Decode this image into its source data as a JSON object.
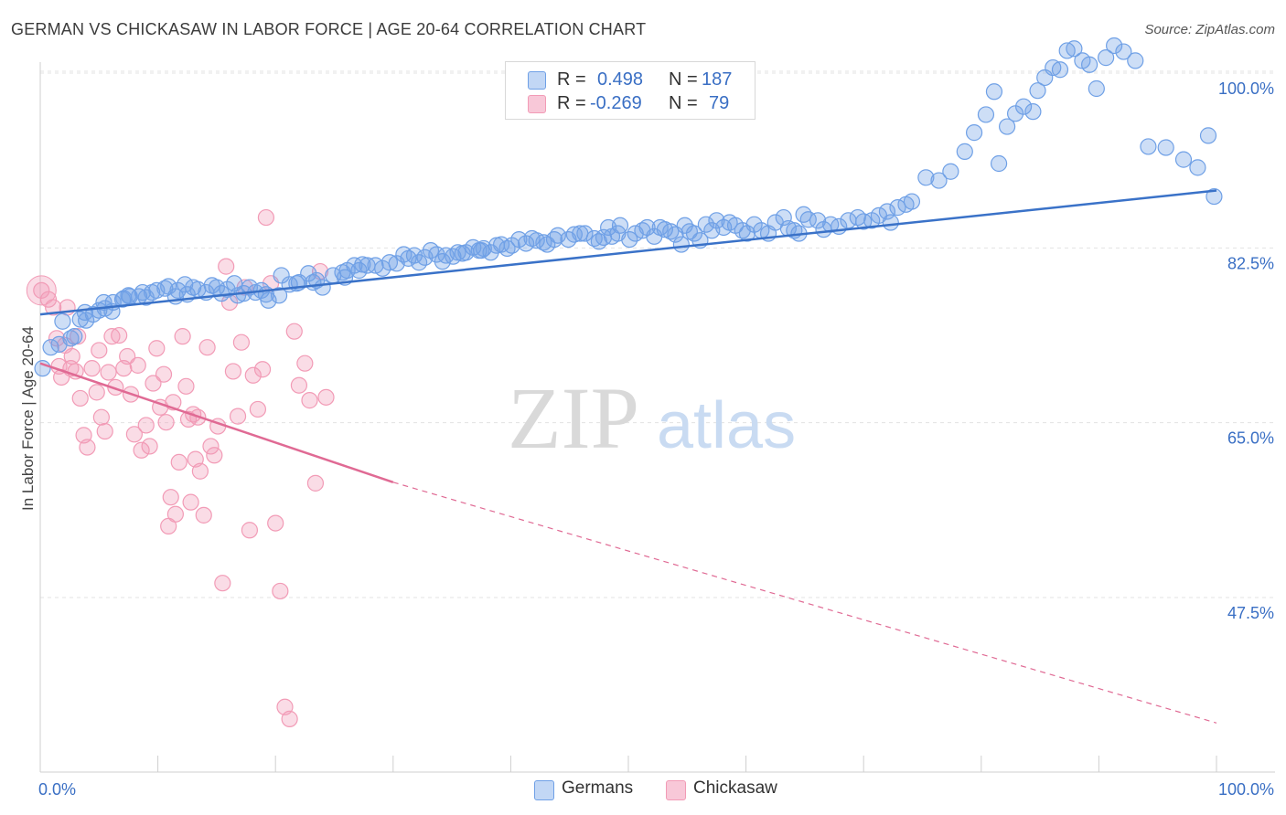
{
  "title": "GERMAN VS CHICKASAW IN LABOR FORCE | AGE 20-64 CORRELATION CHART",
  "source": "Source: ZipAtlas.com",
  "watermark": {
    "zip": "ZIP",
    "atlas": "atlas"
  },
  "legend": {
    "german": {
      "r_label": "R =",
      "r_value": "0.498",
      "n_label": "N =",
      "n_value": "187"
    },
    "chickasaw": {
      "r_label": "R =",
      "r_value": "-0.269",
      "n_label": "N =",
      "n_value": "79"
    }
  },
  "colors": {
    "german": "#6fa0e6",
    "german_line": "#3a72c8",
    "chickasaw": "#f29bb6",
    "chickasaw_line": "#e06a94",
    "tick_label": "#3a6fc4"
  },
  "chart_data": {
    "type": "scatter",
    "ylabel": "In Labor Force | Age 20-64",
    "xlim": [
      0,
      100
    ],
    "ylim": [
      35,
      100
    ],
    "x_tick_labels": [
      "0.0%",
      "100.0%"
    ],
    "y_ticks": [
      {
        "value": 100.0,
        "label": "100.0%"
      },
      {
        "value": 82.5,
        "label": "82.5%"
      },
      {
        "value": 65.0,
        "label": "65.0%"
      },
      {
        "value": 47.5,
        "label": "47.5%"
      }
    ],
    "series": [
      {
        "name": "Germans",
        "trend": {
          "x0": 0,
          "y0": 77.4,
          "x1": 100,
          "y1": 89.8
        },
        "points": [
          [
            0.2,
            72.0
          ],
          [
            0.9,
            74.1
          ],
          [
            1.6,
            74.4
          ],
          [
            1.9,
            76.7
          ],
          [
            2.6,
            75.0
          ],
          [
            2.9,
            75.2
          ],
          [
            3.4,
            76.9
          ],
          [
            3.8,
            77.6
          ],
          [
            3.9,
            76.8
          ],
          [
            4.5,
            77.4
          ],
          [
            5.0,
            77.8
          ],
          [
            5.4,
            78.6
          ],
          [
            5.5,
            78.0
          ],
          [
            6.1,
            77.7
          ],
          [
            6.2,
            78.6
          ],
          [
            7.0,
            78.9
          ],
          [
            7.1,
            79.0
          ],
          [
            7.5,
            79.3
          ],
          [
            7.6,
            79.2
          ],
          [
            8.4,
            79.2
          ],
          [
            8.7,
            79.6
          ],
          [
            9.0,
            79.1
          ],
          [
            9.5,
            79.6
          ],
          [
            9.9,
            79.8
          ],
          [
            10.6,
            80.0
          ],
          [
            10.9,
            80.2
          ],
          [
            11.5,
            79.2
          ],
          [
            11.7,
            79.8
          ],
          [
            12.3,
            80.4
          ],
          [
            12.5,
            79.4
          ],
          [
            13.0,
            80.1
          ],
          [
            13.4,
            79.9
          ],
          [
            14.1,
            79.6
          ],
          [
            14.6,
            80.3
          ],
          [
            15.0,
            80.1
          ],
          [
            15.4,
            79.5
          ],
          [
            15.9,
            79.9
          ],
          [
            16.5,
            80.5
          ],
          [
            16.8,
            79.3
          ],
          [
            17.3,
            79.5
          ],
          [
            17.8,
            80.1
          ],
          [
            18.3,
            79.6
          ],
          [
            18.8,
            79.8
          ],
          [
            19.2,
            79.4
          ],
          [
            19.4,
            78.8
          ],
          [
            20.3,
            79.3
          ],
          [
            20.5,
            81.3
          ],
          [
            21.2,
            80.4
          ],
          [
            21.8,
            80.5
          ],
          [
            22.0,
            80.6
          ],
          [
            22.8,
            81.5
          ],
          [
            23.2,
            80.6
          ],
          [
            23.5,
            80.8
          ],
          [
            24.0,
            80.1
          ],
          [
            24.9,
            81.3
          ],
          [
            25.7,
            81.6
          ],
          [
            25.9,
            81.1
          ],
          [
            26.1,
            81.8
          ],
          [
            26.7,
            82.3
          ],
          [
            27.1,
            81.8
          ],
          [
            27.4,
            82.4
          ],
          [
            27.8,
            82.3
          ],
          [
            28.5,
            82.3
          ],
          [
            29.1,
            82.0
          ],
          [
            29.7,
            82.6
          ],
          [
            30.3,
            82.5
          ],
          [
            30.9,
            83.4
          ],
          [
            31.3,
            83.0
          ],
          [
            31.8,
            83.3
          ],
          [
            32.2,
            82.6
          ],
          [
            32.7,
            83.1
          ],
          [
            33.2,
            83.8
          ],
          [
            33.7,
            83.4
          ],
          [
            34.2,
            82.7
          ],
          [
            34.5,
            83.3
          ],
          [
            35.1,
            83.2
          ],
          [
            35.5,
            83.6
          ],
          [
            35.9,
            83.5
          ],
          [
            36.2,
            83.6
          ],
          [
            36.8,
            84.1
          ],
          [
            37.3,
            83.8
          ],
          [
            37.5,
            83.8
          ],
          [
            37.7,
            84.0
          ],
          [
            38.3,
            83.6
          ],
          [
            38.8,
            84.3
          ],
          [
            39.2,
            84.4
          ],
          [
            39.7,
            84.0
          ],
          [
            40.1,
            84.3
          ],
          [
            40.7,
            84.9
          ],
          [
            41.3,
            84.5
          ],
          [
            41.8,
            85.0
          ],
          [
            42.2,
            84.8
          ],
          [
            42.8,
            84.6
          ],
          [
            43.1,
            84.4
          ],
          [
            43.7,
            84.9
          ],
          [
            44.0,
            85.3
          ],
          [
            44.9,
            84.9
          ],
          [
            45.4,
            85.4
          ],
          [
            45.9,
            85.5
          ],
          [
            46.3,
            85.5
          ],
          [
            47.1,
            85.0
          ],
          [
            47.5,
            84.7
          ],
          [
            47.9,
            85.1
          ],
          [
            48.3,
            86.1
          ],
          [
            48.6,
            85.2
          ],
          [
            49.1,
            85.5
          ],
          [
            49.3,
            86.3
          ],
          [
            50.1,
            84.9
          ],
          [
            50.6,
            85.5
          ],
          [
            51.2,
            85.8
          ],
          [
            51.6,
            86.1
          ],
          [
            52.2,
            85.2
          ],
          [
            52.7,
            86.1
          ],
          [
            53.1,
            85.9
          ],
          [
            53.6,
            85.7
          ],
          [
            54.0,
            85.4
          ],
          [
            54.5,
            84.4
          ],
          [
            54.8,
            86.3
          ],
          [
            55.2,
            85.7
          ],
          [
            55.6,
            85.5
          ],
          [
            56.1,
            84.8
          ],
          [
            56.6,
            86.4
          ],
          [
            57.1,
            85.8
          ],
          [
            57.5,
            86.8
          ],
          [
            58.1,
            86.1
          ],
          [
            58.6,
            86.6
          ],
          [
            59.1,
            86.3
          ],
          [
            59.7,
            85.8
          ],
          [
            60.1,
            85.5
          ],
          [
            60.7,
            86.4
          ],
          [
            61.3,
            85.8
          ],
          [
            61.9,
            85.5
          ],
          [
            62.5,
            86.6
          ],
          [
            63.2,
            87.1
          ],
          [
            63.6,
            86.0
          ],
          [
            64.1,
            85.8
          ],
          [
            64.5,
            85.5
          ],
          [
            64.9,
            87.4
          ],
          [
            65.3,
            86.9
          ],
          [
            66.1,
            86.8
          ],
          [
            66.6,
            85.9
          ],
          [
            67.2,
            86.4
          ],
          [
            67.9,
            86.2
          ],
          [
            68.7,
            86.8
          ],
          [
            69.5,
            87.1
          ],
          [
            70.0,
            86.7
          ],
          [
            70.7,
            86.8
          ],
          [
            71.3,
            87.3
          ],
          [
            72.0,
            87.7
          ],
          [
            72.3,
            86.6
          ],
          [
            72.9,
            88.1
          ],
          [
            73.6,
            88.4
          ],
          [
            74.1,
            88.7
          ],
          [
            75.3,
            91.1
          ],
          [
            76.4,
            90.8
          ],
          [
            77.4,
            91.7
          ],
          [
            78.6,
            93.7
          ],
          [
            79.4,
            95.6
          ],
          [
            80.4,
            97.4
          ],
          [
            81.1,
            99.7
          ],
          [
            81.5,
            92.5
          ],
          [
            82.2,
            96.2
          ],
          [
            82.9,
            97.5
          ],
          [
            83.6,
            98.2
          ],
          [
            84.4,
            97.7
          ],
          [
            84.8,
            99.8
          ],
          [
            85.4,
            101.1
          ],
          [
            86.1,
            102.1
          ],
          [
            86.7,
            101.9
          ],
          [
            87.3,
            103.8
          ],
          [
            87.9,
            104.0
          ],
          [
            88.6,
            102.8
          ],
          [
            89.2,
            102.4
          ],
          [
            89.8,
            100.0
          ],
          [
            90.6,
            103.1
          ],
          [
            91.3,
            104.3
          ],
          [
            92.1,
            103.7
          ],
          [
            93.1,
            102.8
          ],
          [
            94.2,
            94.2
          ],
          [
            95.7,
            94.1
          ],
          [
            97.2,
            92.9
          ],
          [
            98.4,
            92.1
          ],
          [
            99.3,
            95.3
          ],
          [
            99.8,
            89.2
          ]
        ]
      },
      {
        "name": "Chickasaw",
        "trend": {
          "x0": 0,
          "y0": 72.5,
          "x1": 30,
          "y1": 60.6,
          "dash_to_x": 100,
          "dash_to_y": 36.5
        },
        "points": [
          [
            0.1,
            79.8
          ],
          [
            0.7,
            78.9
          ],
          [
            1.1,
            78.1
          ],
          [
            1.4,
            75.0
          ],
          [
            1.6,
            72.2
          ],
          [
            1.8,
            71.1
          ],
          [
            2.1,
            74.3
          ],
          [
            2.3,
            78.1
          ],
          [
            2.6,
            72.0
          ],
          [
            2.7,
            73.2
          ],
          [
            3.0,
            71.7
          ],
          [
            3.2,
            75.2
          ],
          [
            3.4,
            69.0
          ],
          [
            3.7,
            65.3
          ],
          [
            4.0,
            64.1
          ],
          [
            4.4,
            72.0
          ],
          [
            4.8,
            69.6
          ],
          [
            5.0,
            73.8
          ],
          [
            5.2,
            67.1
          ],
          [
            5.5,
            65.7
          ],
          [
            5.8,
            71.6
          ],
          [
            6.1,
            75.2
          ],
          [
            6.4,
            70.1
          ],
          [
            6.7,
            75.3
          ],
          [
            7.1,
            72.0
          ],
          [
            7.4,
            73.2
          ],
          [
            7.7,
            69.4
          ],
          [
            8.0,
            65.4
          ],
          [
            8.3,
            72.3
          ],
          [
            8.6,
            63.8
          ],
          [
            9.0,
            66.3
          ],
          [
            9.3,
            64.2
          ],
          [
            9.6,
            70.5
          ],
          [
            9.9,
            74.0
          ],
          [
            10.2,
            68.1
          ],
          [
            10.5,
            71.4
          ],
          [
            10.7,
            66.6
          ],
          [
            10.9,
            56.2
          ],
          [
            11.1,
            59.1
          ],
          [
            11.3,
            68.6
          ],
          [
            11.5,
            57.4
          ],
          [
            11.8,
            62.6
          ],
          [
            12.1,
            75.2
          ],
          [
            12.4,
            70.2
          ],
          [
            12.6,
            66.9
          ],
          [
            12.8,
            58.6
          ],
          [
            13.0,
            67.4
          ],
          [
            13.2,
            62.9
          ],
          [
            13.4,
            67.1
          ],
          [
            13.6,
            61.7
          ],
          [
            13.9,
            57.3
          ],
          [
            14.2,
            74.1
          ],
          [
            14.5,
            64.2
          ],
          [
            14.8,
            63.3
          ],
          [
            15.1,
            66.2
          ],
          [
            15.5,
            50.5
          ],
          [
            15.8,
            82.2
          ],
          [
            16.1,
            78.6
          ],
          [
            16.4,
            71.7
          ],
          [
            16.8,
            67.2
          ],
          [
            17.1,
            74.6
          ],
          [
            17.4,
            80.1
          ],
          [
            17.8,
            55.8
          ],
          [
            18.1,
            71.3
          ],
          [
            18.5,
            67.9
          ],
          [
            18.9,
            71.9
          ],
          [
            19.2,
            87.1
          ],
          [
            19.6,
            80.5
          ],
          [
            20.0,
            56.5
          ],
          [
            20.4,
            49.7
          ],
          [
            20.8,
            38.1
          ],
          [
            21.2,
            36.9
          ],
          [
            21.6,
            75.7
          ],
          [
            22.0,
            70.3
          ],
          [
            22.5,
            72.5
          ],
          [
            22.9,
            68.8
          ],
          [
            23.4,
            60.5
          ],
          [
            23.8,
            81.7
          ],
          [
            24.3,
            69.1
          ]
        ]
      }
    ]
  }
}
